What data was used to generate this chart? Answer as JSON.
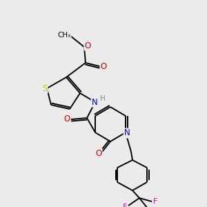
{
  "bg_color": "#ebebeb",
  "atom_colors": {
    "C": "#000000",
    "N": "#0000cc",
    "O": "#cc0000",
    "S": "#cccc00",
    "F": "#cc00cc",
    "H": "#888888"
  },
  "bond_color": "#000000",
  "figsize": [
    3.0,
    3.0
  ],
  "dpi": 100,
  "lw": 1.4
}
